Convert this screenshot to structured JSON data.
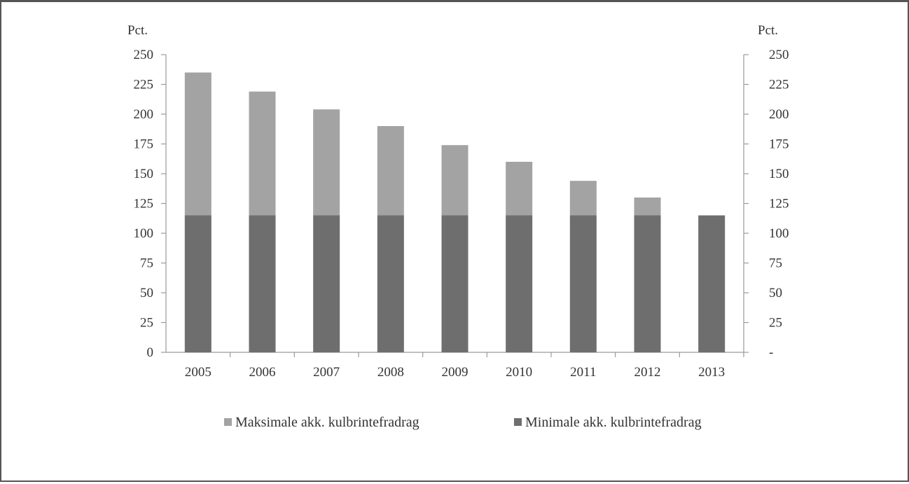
{
  "chart_data": {
    "type": "bar",
    "stacked": true,
    "categories": [
      "2005",
      "2006",
      "2007",
      "2008",
      "2009",
      "2010",
      "2011",
      "2012",
      "2013"
    ],
    "series": [
      {
        "name": "Minimale akk. kulbrintefradrag",
        "values": [
          115,
          115,
          115,
          115,
          115,
          115,
          115,
          115,
          115
        ],
        "color": "#6e6e6e"
      },
      {
        "name": "Maksimale akk. kulbrintefradrag",
        "values": [
          120,
          104,
          89,
          75,
          59,
          45,
          29,
          15,
          0
        ],
        "color": "#a3a3a3"
      }
    ],
    "totals": [
      235,
      219,
      204,
      190,
      174,
      160,
      144,
      130,
      115
    ],
    "ylim": [
      0,
      250
    ],
    "y_ticks": [
      0,
      25,
      50,
      75,
      100,
      125,
      150,
      175,
      200,
      225,
      250
    ],
    "y_tick_labels_left": [
      "0",
      "25",
      "50",
      "75",
      "100",
      "125",
      "150",
      "175",
      "200",
      "225",
      "250"
    ],
    "y_tick_labels_right": [
      "-",
      "25",
      "50",
      "75",
      "100",
      "125",
      "150",
      "175",
      "200",
      "225",
      "250"
    ],
    "ylabel_left": "Pct.",
    "ylabel_right": "Pct.",
    "legend_order": [
      "Maksimale akk. kulbrintefradrag",
      "Minimale akk. kulbrintefradrag"
    ],
    "legend_position": "bottom",
    "grid": false
  }
}
